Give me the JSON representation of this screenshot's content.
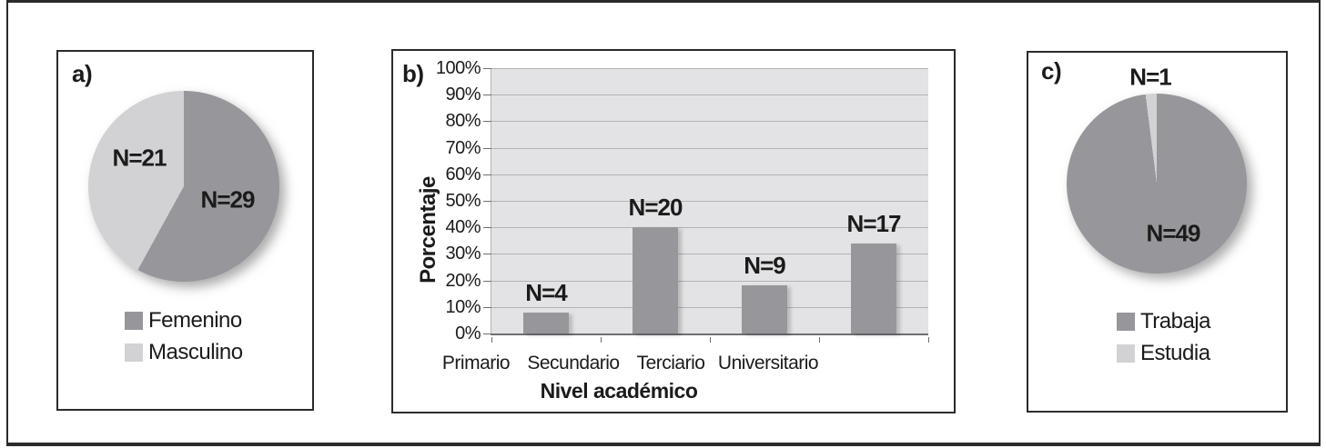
{
  "figure": {
    "panel_letters": {
      "a": "a)",
      "b": "b)",
      "c": "c)"
    }
  },
  "colors": {
    "dark_gray": "#97979b",
    "light_gray": "#d2d2d4",
    "plot_background": "#e3e3e5",
    "gridline": "#b3b3b5",
    "axis": "#6f6f73",
    "text": "#1b1b1b",
    "border": "#2b2b2b"
  },
  "chart_data": [
    {
      "id": "a",
      "type": "pie",
      "panel_label": "a)",
      "total": 50,
      "slices": [
        {
          "name": "Femenino",
          "label": "N=29",
          "value": 29,
          "color": "#97979b"
        },
        {
          "name": "Masculino",
          "label": "N=21",
          "value": 21,
          "color": "#d2d2d4"
        }
      ],
      "legend_position": "bottom"
    },
    {
      "id": "b",
      "type": "bar",
      "panel_label": "b)",
      "xlabel": "Nivel académico",
      "ylabel": "Porcentaje",
      "categories": [
        "Primario",
        "Secundario",
        "Terciario",
        "Universitario"
      ],
      "counts": [
        4,
        20,
        9,
        17
      ],
      "values_pct": [
        8,
        40,
        18,
        34
      ],
      "bar_labels": [
        "N=4",
        "N=20",
        "N=9",
        "N=17"
      ],
      "yticks": [
        "0%",
        "10%",
        "20%",
        "30%",
        "40%",
        "50%",
        "60%",
        "70%",
        "80%",
        "90%",
        "100%"
      ],
      "ylim": [
        0,
        100
      ],
      "grid": true,
      "bar_color": "#97979b",
      "plot_bg": "#e3e3e5"
    },
    {
      "id": "c",
      "type": "pie",
      "panel_label": "c)",
      "total": 50,
      "slices": [
        {
          "name": "Trabaja",
          "label": "N=49",
          "value": 49,
          "color": "#97979b"
        },
        {
          "name": "Estudia",
          "label": "N=1",
          "value": 1,
          "color": "#d2d2d4"
        }
      ],
      "legend_position": "bottom"
    }
  ]
}
